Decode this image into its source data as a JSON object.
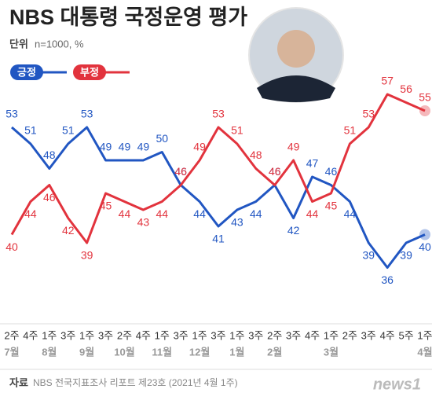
{
  "chart_data": {
    "type": "line",
    "title": "NBS 대통령 국정운영 평가",
    "unit_label": "단위",
    "unit": "n=1000, %",
    "categories": [
      "2주",
      "4주",
      "1주",
      "3주",
      "1주",
      "3주",
      "2주",
      "4주",
      "1주",
      "3주",
      "1주",
      "3주",
      "1주",
      "3주",
      "2주",
      "3주",
      "4주",
      "1주",
      "2주",
      "3주",
      "4주",
      "5주",
      "1주"
    ],
    "months": [
      "7월",
      null,
      "8월",
      null,
      "9월",
      null,
      "10월",
      null,
      "11월",
      null,
      "12월",
      null,
      "1월",
      null,
      "2월",
      null,
      null,
      "3월",
      null,
      null,
      null,
      null,
      "4월"
    ],
    "series": [
      {
        "name": "긍정",
        "color": "#2156c2",
        "values": [
          53,
          51,
          48,
          51,
          53,
          49,
          49,
          49,
          50,
          46,
          44,
          41,
          43,
          44,
          46,
          42,
          47,
          46,
          44,
          39,
          36,
          39,
          40
        ]
      },
      {
        "name": "부정",
        "color": "#e2333d",
        "values": [
          40,
          44,
          46,
          42,
          39,
          45,
          44,
          43,
          44,
          46,
          49,
          53,
          51,
          48,
          46,
          49,
          44,
          45,
          51,
          53,
          57,
          56,
          55
        ]
      }
    ],
    "ylim": [
      30,
      60
    ],
    "source_label": "자료",
    "source": "NBS 전국지표조사 리포트 제23호 (2021년 4월 1주)",
    "logo": "news1"
  }
}
